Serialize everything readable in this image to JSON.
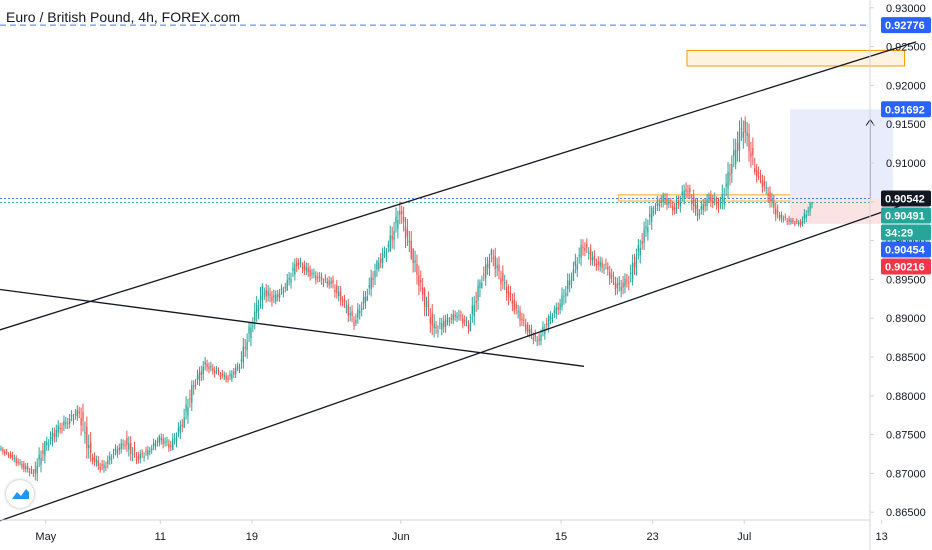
{
  "title": "Euro / British Pound, 4h, FOREX.com",
  "colors": {
    "up": "#26a69a",
    "down": "#ef5350",
    "trendline": "#131722",
    "blue_badge": "#2962ff",
    "teal_badge": "#26a69a",
    "red_badge": "#f23645",
    "dark_badge": "#131722",
    "zone_border": "#ff9800",
    "zone_fill": "#fff3e0",
    "target_fill": "#e8ecfb",
    "stop_fill": "#fbe3e3"
  },
  "logo_icon": "tradingview-logo-icon",
  "chart_data": {
    "type": "candlestick",
    "title": "Euro / British Pound, 4h, FOREX.com",
    "x_ticks": [
      "May",
      "11",
      "19",
      "Jun",
      "15",
      "23",
      "Jul",
      "13"
    ],
    "y_ticks": [
      "0.93000",
      "0.92500",
      "0.92000",
      "0.91500",
      "0.91000",
      "0.90500",
      "0.90000",
      "0.89500",
      "0.89000",
      "0.88500",
      "0.88000",
      "0.87500",
      "0.87000",
      "0.86500"
    ],
    "ylim": [
      0.864,
      0.931
    ],
    "price_badges": [
      {
        "label": "0.92776",
        "price": 0.92776,
        "style": "blue"
      },
      {
        "label": "0.91692",
        "price": 0.91692,
        "style": "blue"
      },
      {
        "label": "0.90542",
        "price": 0.90542,
        "style": "dark"
      },
      {
        "label": "0.90491",
        "price": 0.90491,
        "style": "teal"
      },
      {
        "label": "34:29",
        "price": 0.90465,
        "style": "teal"
      },
      {
        "label": "0.90454",
        "price": 0.90454,
        "style": "blue"
      },
      {
        "label": "0.90216",
        "price": 0.90216,
        "style": "red"
      }
    ],
    "horizontal_lines": [
      {
        "price": 0.92776,
        "style": "dashed",
        "color": "blue"
      },
      {
        "price": 0.90542,
        "style": "dotted",
        "color": "blue"
      },
      {
        "price": 0.90491,
        "style": "dotted",
        "color": "teal"
      }
    ],
    "trendlines": [
      {
        "name": "channel-upper",
        "points": [
          [
            "Apr 27",
            0.8885
          ],
          [
            "Jul 16",
            0.9256
          ]
        ]
      },
      {
        "name": "channel-lower",
        "points": [
          [
            "Apr 27",
            0.8639
          ],
          [
            "Jul 16",
            0.9052
          ]
        ]
      },
      {
        "name": "descending-line",
        "points": [
          [
            "Apr 27",
            0.8937
          ],
          [
            "Jun 17",
            0.8838
          ]
        ]
      }
    ],
    "zones": [
      {
        "name": "resistance-zone",
        "from": "Jun 26",
        "to": "Jul 15",
        "low": 0.9225,
        "high": 0.9245
      },
      {
        "name": "support-zone",
        "from": "Jun 20",
        "to": "Jul 10",
        "low": 0.9051,
        "high": 0.9059
      },
      {
        "name": "target-zone",
        "from": "Jul 5",
        "to": "Jul 14",
        "low": 0.90542,
        "high": 0.91692
      },
      {
        "name": "stop-zone",
        "from": "Jul 5",
        "to": "Jul 14",
        "low": 0.90216,
        "high": 0.90542
      }
    ],
    "arrow": {
      "date": "Jul 12",
      "from": 0.90542,
      "to": 0.9156
    },
    "series": [
      {
        "values": [
          [
            "Apr 27",
            0.8732,
            0.8738,
            0.8719,
            0.8722
          ],
          [
            "Apr 28",
            0.8722,
            0.8728,
            0.8705,
            0.871
          ],
          [
            "Apr 29",
            0.871,
            0.8716,
            0.8692,
            0.87
          ],
          [
            "Apr 30",
            0.87,
            0.8742,
            0.8688,
            0.8735
          ],
          [
            "May 1",
            0.8735,
            0.8765,
            0.8725,
            0.8755
          ],
          [
            "May 2",
            0.8755,
            0.8778,
            0.874,
            0.8768
          ],
          [
            "May 3",
            0.8768,
            0.8792,
            0.8758,
            0.878
          ],
          [
            "May 4",
            0.878,
            0.879,
            0.8715,
            0.8722
          ],
          [
            "May 5",
            0.8722,
            0.8728,
            0.8698,
            0.8706
          ],
          [
            "May 6",
            0.8706,
            0.8732,
            0.87,
            0.8726
          ],
          [
            "May 7",
            0.8726,
            0.8748,
            0.8716,
            0.874
          ],
          [
            "May 8",
            0.874,
            0.8762,
            0.8712,
            0.872
          ],
          [
            "May 9",
            0.872,
            0.8738,
            0.8708,
            0.8728
          ],
          [
            "May 10",
            0.8728,
            0.875,
            0.8722,
            0.8745
          ],
          [
            "May 11",
            0.8745,
            0.876,
            0.8728,
            0.8735
          ],
          [
            "May 12",
            0.8735,
            0.877,
            0.873,
            0.8765
          ],
          [
            "May 13",
            0.8765,
            0.882,
            0.876,
            0.8815
          ],
          [
            "May 14",
            0.8815,
            0.885,
            0.8808,
            0.884
          ],
          [
            "May 15",
            0.884,
            0.8852,
            0.8822,
            0.883
          ],
          [
            "May 16",
            0.883,
            0.8838,
            0.8815,
            0.8822
          ],
          [
            "May 17",
            0.8822,
            0.8845,
            0.8818,
            0.884
          ],
          [
            "May 18",
            0.884,
            0.8895,
            0.8835,
            0.889
          ],
          [
            "May 19",
            0.889,
            0.8945,
            0.8882,
            0.8935
          ],
          [
            "May 20",
            0.8935,
            0.8958,
            0.8915,
            0.8925
          ],
          [
            "May 21",
            0.8925,
            0.8948,
            0.8918,
            0.894
          ],
          [
            "May 22",
            0.894,
            0.8978,
            0.8935,
            0.8972
          ],
          [
            "May 23",
            0.8972,
            0.8985,
            0.8952,
            0.896
          ],
          [
            "May 24",
            0.896,
            0.8975,
            0.8942,
            0.895
          ],
          [
            "May 25",
            0.895,
            0.8968,
            0.8938,
            0.8945
          ],
          [
            "May 26",
            0.8945,
            0.8955,
            0.8915,
            0.8922
          ],
          [
            "May 27",
            0.8922,
            0.893,
            0.8885,
            0.8895
          ],
          [
            "May 28",
            0.8895,
            0.8935,
            0.889,
            0.8928
          ],
          [
            "May 29",
            0.8928,
            0.8975,
            0.8922,
            0.8968
          ],
          [
            "May 30",
            0.8968,
            0.9,
            0.896,
            0.8992
          ],
          [
            "May 31",
            0.8992,
            0.9052,
            0.8985,
            0.9038
          ],
          [
            "Jun 1",
            0.9038,
            0.9045,
            0.8975,
            0.8985
          ],
          [
            "Jun 2",
            0.8985,
            0.899,
            0.8922,
            0.893
          ],
          [
            "Jun 3",
            0.893,
            0.894,
            0.8872,
            0.8885
          ],
          [
            "Jun 4",
            0.8885,
            0.8905,
            0.8865,
            0.8895
          ],
          [
            "Jun 5",
            0.8895,
            0.8915,
            0.8885,
            0.8905
          ],
          [
            "Jun 6",
            0.8905,
            0.8915,
            0.888,
            0.889
          ],
          [
            "Jun 7",
            0.889,
            0.895,
            0.8885,
            0.8945
          ],
          [
            "Jun 8",
            0.8945,
            0.899,
            0.8938,
            0.8982
          ],
          [
            "Jun 9",
            0.8982,
            0.8992,
            0.8935,
            0.8945
          ],
          [
            "Jun 10",
            0.8945,
            0.8958,
            0.8905,
            0.8915
          ],
          [
            "Jun 11",
            0.8915,
            0.8922,
            0.888,
            0.8888
          ],
          [
            "Jun 12",
            0.8888,
            0.8895,
            0.8862,
            0.887
          ],
          [
            "Jun 13",
            0.887,
            0.8905,
            0.8865,
            0.8898
          ],
          [
            "Jun 14",
            0.8898,
            0.8925,
            0.889,
            0.8918
          ],
          [
            "Jun 15",
            0.8918,
            0.8962,
            0.891,
            0.8955
          ],
          [
            "Jun 16",
            0.8955,
            0.9002,
            0.8948,
            0.8995
          ],
          [
            "Jun 17",
            0.8995,
            0.9005,
            0.8965,
            0.8972
          ],
          [
            "Jun 18",
            0.8972,
            0.8985,
            0.8948,
            0.8965
          ],
          [
            "Jun 19",
            0.8965,
            0.8972,
            0.8928,
            0.8938
          ],
          [
            "Jun 20",
            0.8938,
            0.8958,
            0.891,
            0.895
          ],
          [
            "Jun 21",
            0.895,
            0.9002,
            0.8942,
            0.8995
          ],
          [
            "Jun 22",
            0.8995,
            0.9045,
            0.8988,
            0.9038
          ],
          [
            "Jun 23",
            0.9038,
            0.9062,
            0.9025,
            0.9055
          ],
          [
            "Jun 24",
            0.9055,
            0.9065,
            0.903,
            0.904
          ],
          [
            "Jun 25",
            0.904,
            0.908,
            0.9035,
            0.9068
          ],
          [
            "Jun 26",
            0.9068,
            0.9072,
            0.9025,
            0.9035
          ],
          [
            "Jun 27",
            0.9035,
            0.9062,
            0.9025,
            0.9055
          ],
          [
            "Jun 28",
            0.9055,
            0.9068,
            0.9028,
            0.9045
          ],
          [
            "Jun 29",
            0.9045,
            0.911,
            0.904,
            0.91
          ],
          [
            "Jun 30",
            0.91,
            0.9172,
            0.9092,
            0.915
          ],
          [
            "Jul 1",
            0.915,
            0.916,
            0.9085,
            0.9092
          ],
          [
            "Jul 2",
            0.9092,
            0.91,
            0.9058,
            0.9065
          ],
          [
            "Jul 3",
            0.9065,
            0.907,
            0.9025,
            0.9032
          ],
          [
            "Jul 4",
            0.9032,
            0.904,
            0.9018,
            0.9025
          ],
          [
            "Jul 5",
            0.9025,
            0.9032,
            0.9015,
            0.9022
          ],
          [
            "Jul 6",
            0.9022,
            0.905,
            0.9018,
            0.9049
          ]
        ]
      }
    ]
  }
}
